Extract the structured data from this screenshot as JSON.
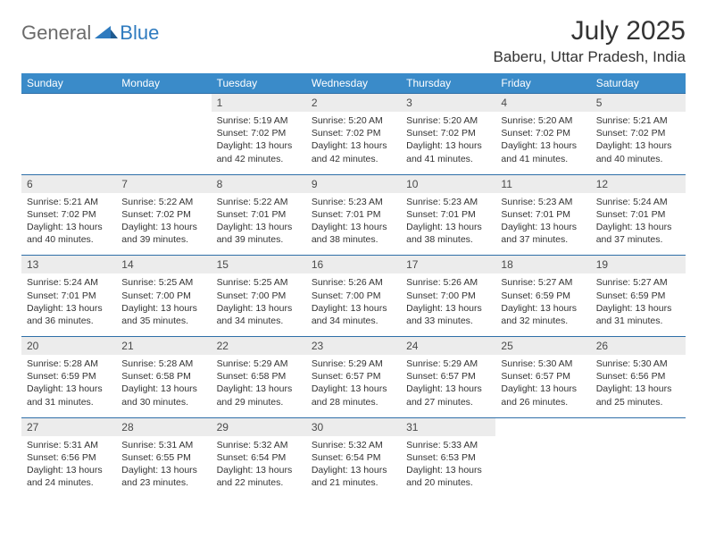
{
  "logo": {
    "general": "General",
    "blue": "Blue"
  },
  "title": "July 2025",
  "location": "Baberu, Uttar Pradesh, India",
  "colors": {
    "header_bg": "#3a8bc9",
    "header_text": "#ffffff",
    "daynum_bg": "#ececec",
    "daynum_text": "#4a4a4a",
    "border_top": "#2f6fa8",
    "body_text": "#333333",
    "logo_gray": "#6b6b6b",
    "logo_blue": "#2f7bbf"
  },
  "dayHeaders": [
    "Sunday",
    "Monday",
    "Tuesday",
    "Wednesday",
    "Thursday",
    "Friday",
    "Saturday"
  ],
  "weeks": [
    [
      null,
      null,
      {
        "n": "1",
        "sr": "5:19 AM",
        "ss": "7:02 PM",
        "dl": "13 hours and 42 minutes."
      },
      {
        "n": "2",
        "sr": "5:20 AM",
        "ss": "7:02 PM",
        "dl": "13 hours and 42 minutes."
      },
      {
        "n": "3",
        "sr": "5:20 AM",
        "ss": "7:02 PM",
        "dl": "13 hours and 41 minutes."
      },
      {
        "n": "4",
        "sr": "5:20 AM",
        "ss": "7:02 PM",
        "dl": "13 hours and 41 minutes."
      },
      {
        "n": "5",
        "sr": "5:21 AM",
        "ss": "7:02 PM",
        "dl": "13 hours and 40 minutes."
      }
    ],
    [
      {
        "n": "6",
        "sr": "5:21 AM",
        "ss": "7:02 PM",
        "dl": "13 hours and 40 minutes."
      },
      {
        "n": "7",
        "sr": "5:22 AM",
        "ss": "7:02 PM",
        "dl": "13 hours and 39 minutes."
      },
      {
        "n": "8",
        "sr": "5:22 AM",
        "ss": "7:01 PM",
        "dl": "13 hours and 39 minutes."
      },
      {
        "n": "9",
        "sr": "5:23 AM",
        "ss": "7:01 PM",
        "dl": "13 hours and 38 minutes."
      },
      {
        "n": "10",
        "sr": "5:23 AM",
        "ss": "7:01 PM",
        "dl": "13 hours and 38 minutes."
      },
      {
        "n": "11",
        "sr": "5:23 AM",
        "ss": "7:01 PM",
        "dl": "13 hours and 37 minutes."
      },
      {
        "n": "12",
        "sr": "5:24 AM",
        "ss": "7:01 PM",
        "dl": "13 hours and 37 minutes."
      }
    ],
    [
      {
        "n": "13",
        "sr": "5:24 AM",
        "ss": "7:01 PM",
        "dl": "13 hours and 36 minutes."
      },
      {
        "n": "14",
        "sr": "5:25 AM",
        "ss": "7:00 PM",
        "dl": "13 hours and 35 minutes."
      },
      {
        "n": "15",
        "sr": "5:25 AM",
        "ss": "7:00 PM",
        "dl": "13 hours and 34 minutes."
      },
      {
        "n": "16",
        "sr": "5:26 AM",
        "ss": "7:00 PM",
        "dl": "13 hours and 34 minutes."
      },
      {
        "n": "17",
        "sr": "5:26 AM",
        "ss": "7:00 PM",
        "dl": "13 hours and 33 minutes."
      },
      {
        "n": "18",
        "sr": "5:27 AM",
        "ss": "6:59 PM",
        "dl": "13 hours and 32 minutes."
      },
      {
        "n": "19",
        "sr": "5:27 AM",
        "ss": "6:59 PM",
        "dl": "13 hours and 31 minutes."
      }
    ],
    [
      {
        "n": "20",
        "sr": "5:28 AM",
        "ss": "6:59 PM",
        "dl": "13 hours and 31 minutes."
      },
      {
        "n": "21",
        "sr": "5:28 AM",
        "ss": "6:58 PM",
        "dl": "13 hours and 30 minutes."
      },
      {
        "n": "22",
        "sr": "5:29 AM",
        "ss": "6:58 PM",
        "dl": "13 hours and 29 minutes."
      },
      {
        "n": "23",
        "sr": "5:29 AM",
        "ss": "6:57 PM",
        "dl": "13 hours and 28 minutes."
      },
      {
        "n": "24",
        "sr": "5:29 AM",
        "ss": "6:57 PM",
        "dl": "13 hours and 27 minutes."
      },
      {
        "n": "25",
        "sr": "5:30 AM",
        "ss": "6:57 PM",
        "dl": "13 hours and 26 minutes."
      },
      {
        "n": "26",
        "sr": "5:30 AM",
        "ss": "6:56 PM",
        "dl": "13 hours and 25 minutes."
      }
    ],
    [
      {
        "n": "27",
        "sr": "5:31 AM",
        "ss": "6:56 PM",
        "dl": "13 hours and 24 minutes."
      },
      {
        "n": "28",
        "sr": "5:31 AM",
        "ss": "6:55 PM",
        "dl": "13 hours and 23 minutes."
      },
      {
        "n": "29",
        "sr": "5:32 AM",
        "ss": "6:54 PM",
        "dl": "13 hours and 22 minutes."
      },
      {
        "n": "30",
        "sr": "5:32 AM",
        "ss": "6:54 PM",
        "dl": "13 hours and 21 minutes."
      },
      {
        "n": "31",
        "sr": "5:33 AM",
        "ss": "6:53 PM",
        "dl": "13 hours and 20 minutes."
      },
      null,
      null
    ]
  ],
  "labels": {
    "sunrise": "Sunrise: ",
    "sunset": "Sunset: ",
    "daylight": "Daylight: "
  }
}
